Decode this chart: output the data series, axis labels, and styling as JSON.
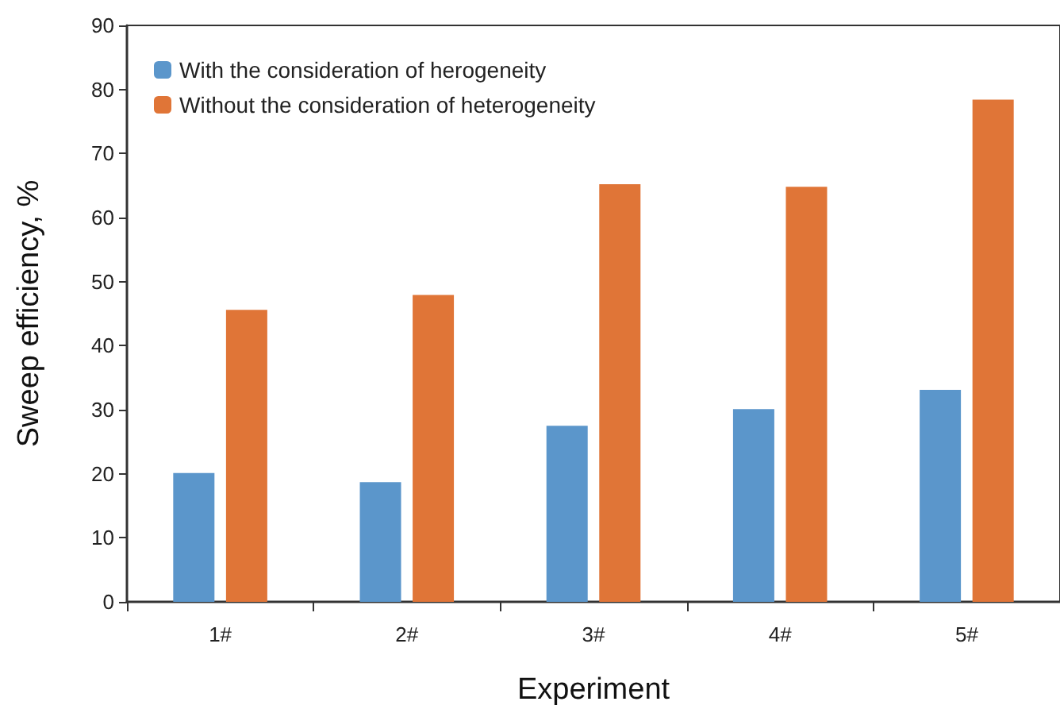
{
  "chart_data": {
    "type": "bar",
    "xlabel": "Experiment",
    "ylabel": "Sweep efficiency, %",
    "categories": [
      "1#",
      "2#",
      "3#",
      "4#",
      "5#"
    ],
    "series": [
      {
        "name": "With the consideration of herogeneity",
        "color": "#5b96cb",
        "values": [
          20.1,
          18.7,
          27.5,
          30.1,
          33.1
        ]
      },
      {
        "name": "Without the consideration of heterogeneity",
        "color": "#e07537",
        "values": [
          45.6,
          47.9,
          65.2,
          64.8,
          78.4
        ]
      }
    ],
    "ylim": [
      0,
      90
    ],
    "yticks": [
      0,
      10,
      20,
      30,
      40,
      50,
      60,
      70,
      80,
      90
    ],
    "grid": false,
    "legend": "top left"
  }
}
